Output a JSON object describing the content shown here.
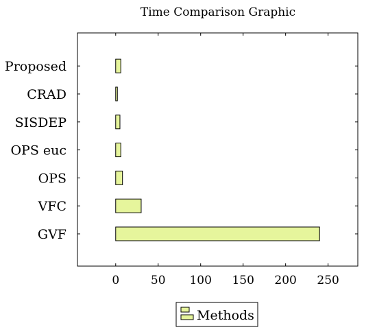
{
  "chart_data": {
    "type": "bar",
    "orientation": "horizontal",
    "title": "Time Comparison Graphic",
    "xlabel": "",
    "ylabel": "",
    "categories": [
      "GVF",
      "VFC",
      "OPS",
      "OPS euc",
      "SISDEP",
      "CRAD",
      "Proposed"
    ],
    "series": [
      {
        "name": "Methods",
        "values": [
          240,
          30,
          8,
          6,
          5,
          2,
          6
        ]
      }
    ],
    "xlim": [
      -45,
      285
    ],
    "xticks": [
      0,
      50,
      100,
      150,
      200,
      250
    ],
    "grid": false,
    "legend_position": "bottom-center",
    "bar_fill": "#e6f59c",
    "bar_stroke": "#000000"
  }
}
